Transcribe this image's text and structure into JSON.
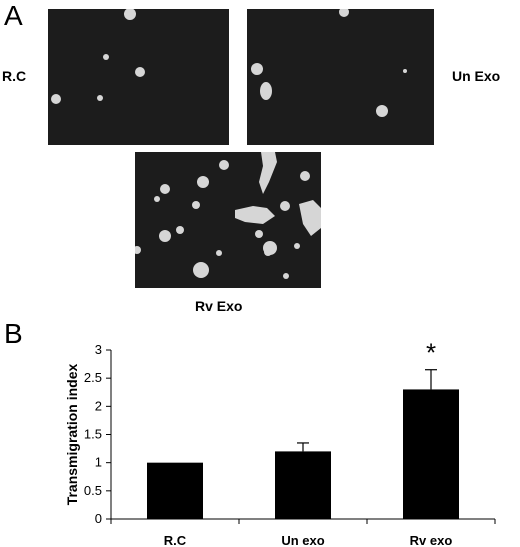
{
  "panels": {
    "a_letter": "A",
    "b_letter": "B"
  },
  "images": {
    "rc_label": "R.C",
    "un_label": "Un Exo",
    "rv_label": "Rv Exo",
    "background_color": "#1c1c1c",
    "cell_color": "#d6d6d6"
  },
  "chart_data": {
    "type": "bar",
    "categories": [
      "R.C",
      "Un exo",
      "Rv exo"
    ],
    "values": [
      1.0,
      1.2,
      2.3
    ],
    "errors": [
      0,
      0.15,
      0.35
    ],
    "ylabel": "Transmigration index",
    "xlabel": "",
    "ylim": [
      0,
      3
    ],
    "yticks": [
      "0",
      "0.5",
      "1",
      "1.5",
      "2",
      "2.5",
      "3"
    ],
    "significance": [
      {
        "category": "Rv exo",
        "marker": "*"
      }
    ],
    "bar_color": "#000000",
    "grid": false
  }
}
